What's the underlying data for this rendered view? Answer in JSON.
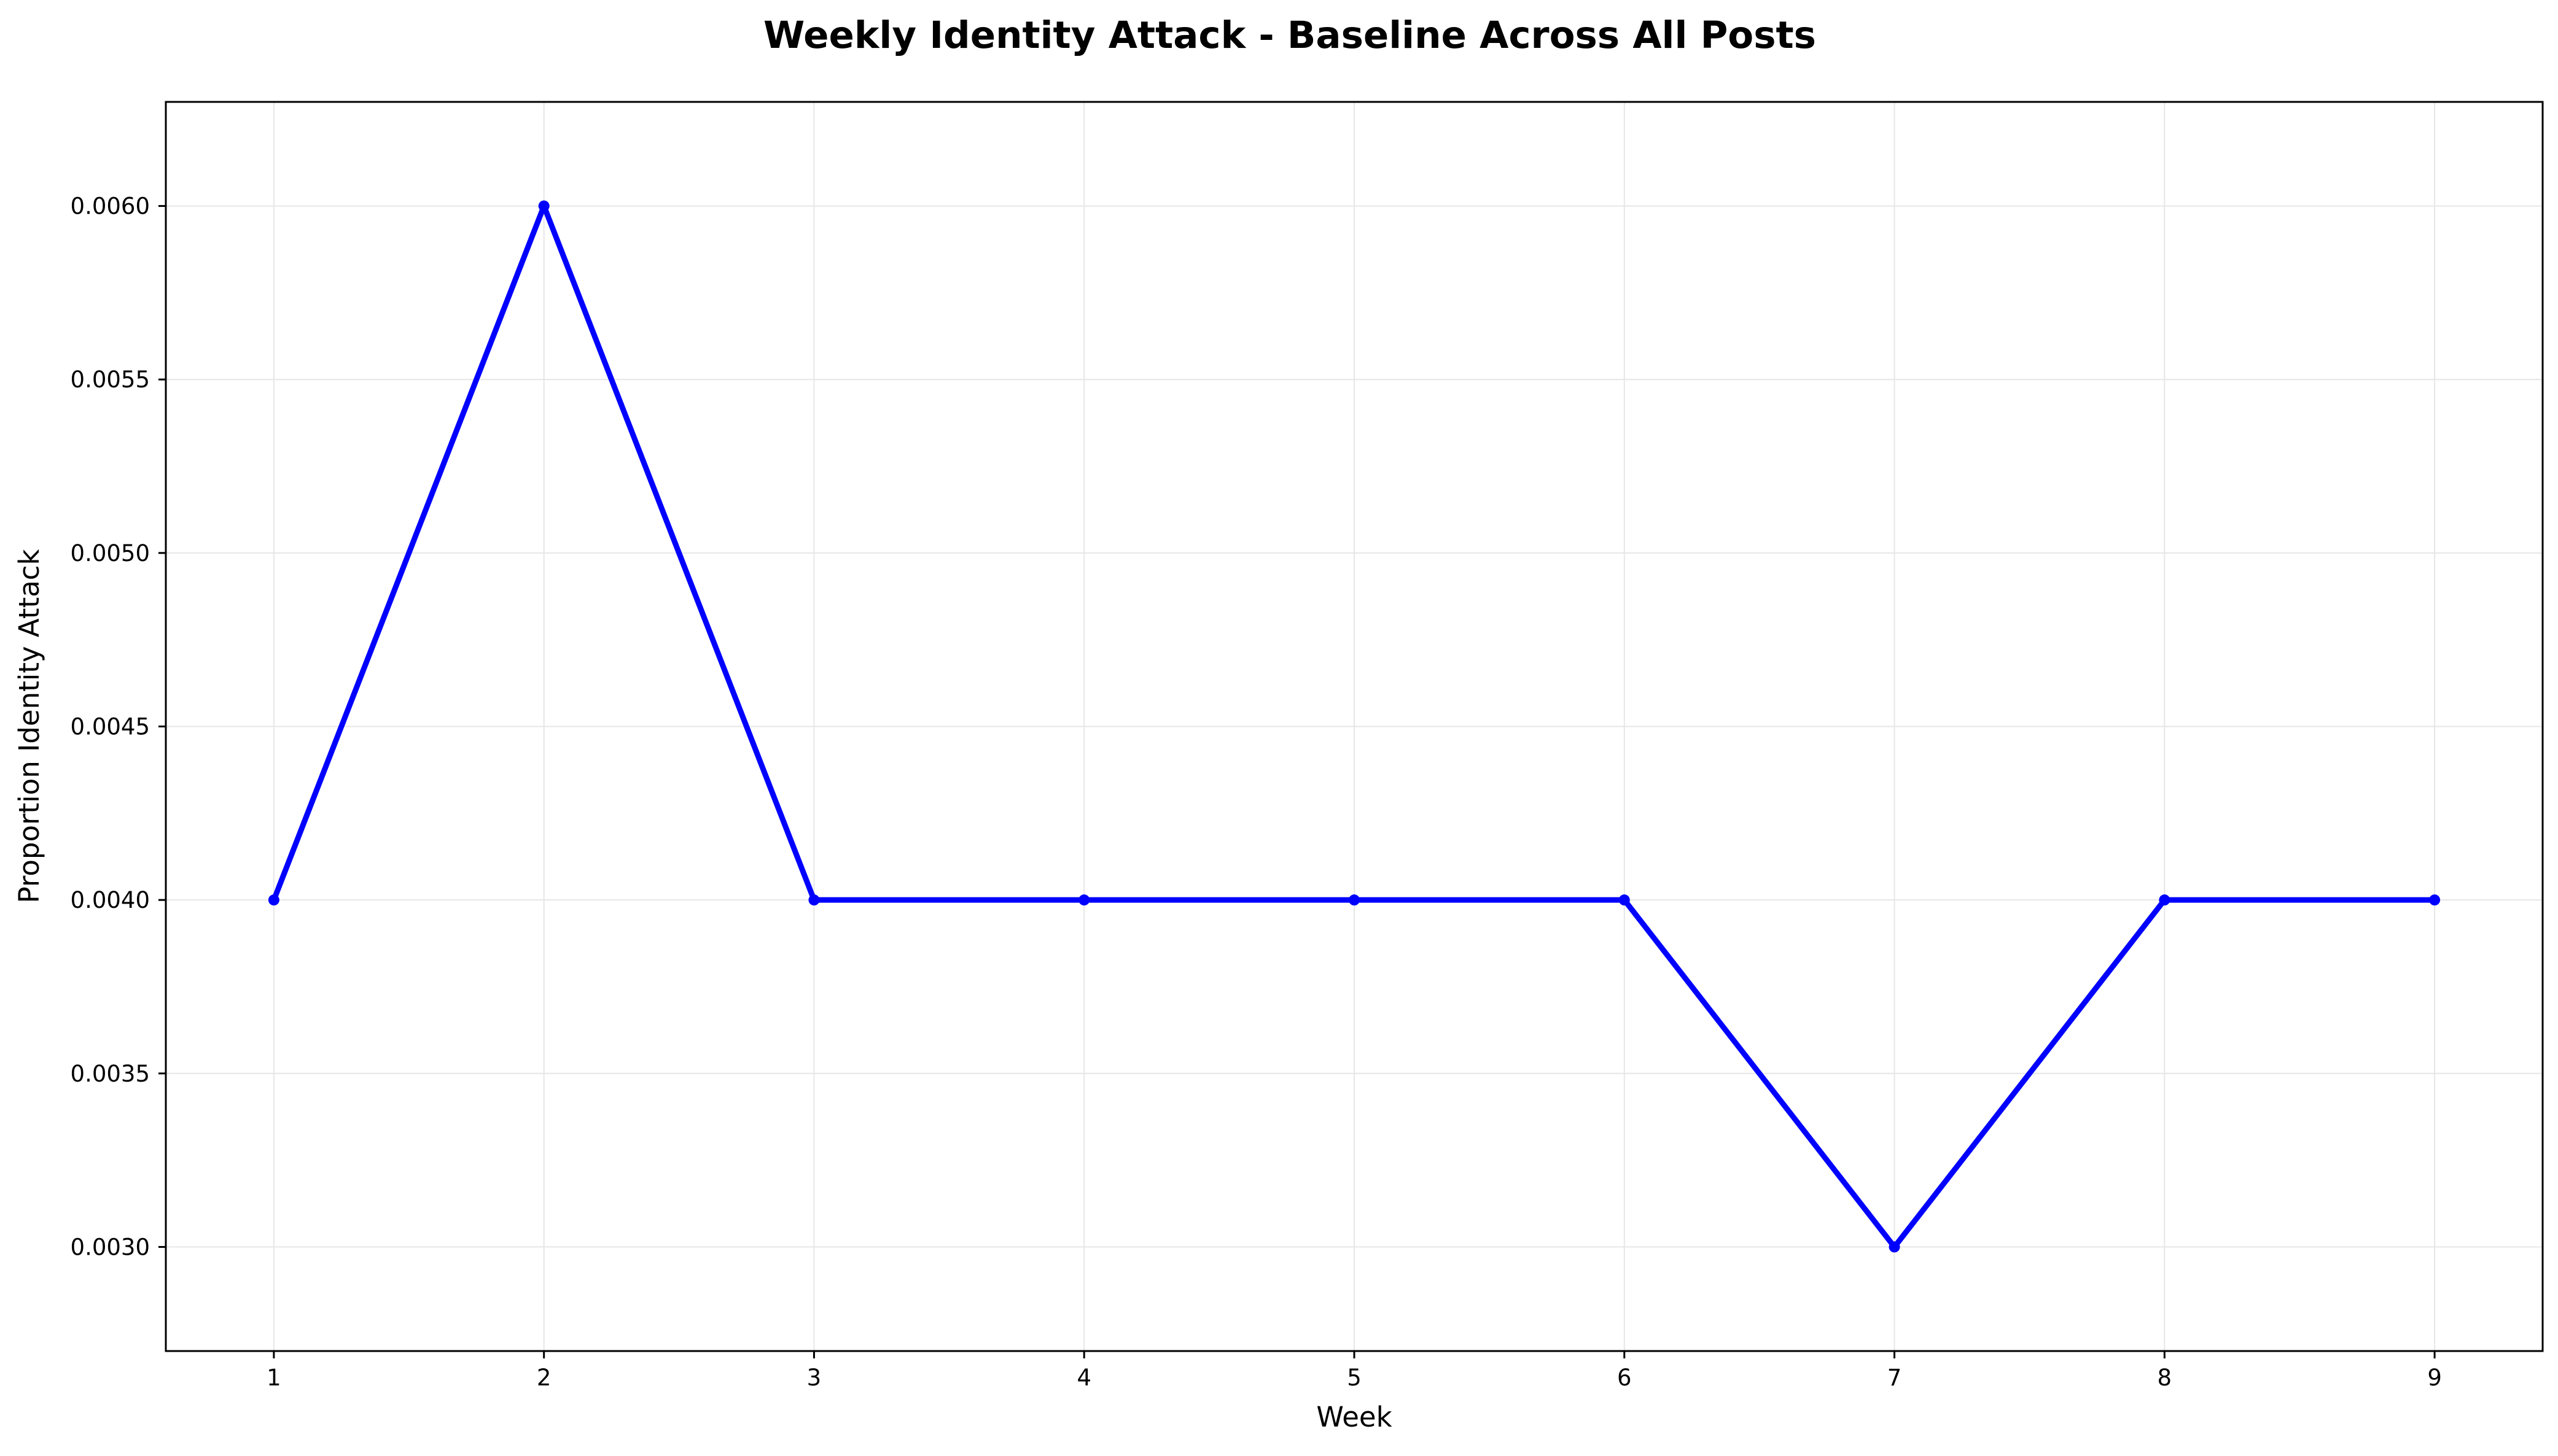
{
  "chart_data": {
    "type": "line",
    "title": "Weekly Identity Attack - Baseline Across All Posts",
    "xlabel": "Week",
    "ylabel": "Proportion Identity Attack",
    "x": [
      1,
      2,
      3,
      4,
      5,
      6,
      7,
      8,
      9
    ],
    "series": [
      {
        "values": [
          0.004,
          0.006,
          0.004,
          0.004,
          0.004,
          0.004,
          0.003,
          0.004,
          0.004
        ]
      }
    ],
    "xlim": [
      0.6,
      9.4
    ],
    "ylim": [
      0.0027,
      0.0063
    ],
    "xticks": [
      1,
      2,
      3,
      4,
      5,
      6,
      7,
      8,
      9
    ],
    "xtick_labels": [
      "1",
      "2",
      "3",
      "4",
      "5",
      "6",
      "7",
      "8",
      "9"
    ],
    "yticks": [
      0.003,
      0.0035,
      0.004,
      0.0045,
      0.005,
      0.0055,
      0.006
    ],
    "ytick_labels": [
      "0.0030",
      "0.0035",
      "0.0040",
      "0.0045",
      "0.0050",
      "0.0055",
      "0.0060"
    ],
    "grid": true,
    "legend": "none",
    "colors": {
      "line": "#0000ff",
      "marker": "#0000ff",
      "grid": "#e6e6e6",
      "axes": "#000000"
    }
  }
}
